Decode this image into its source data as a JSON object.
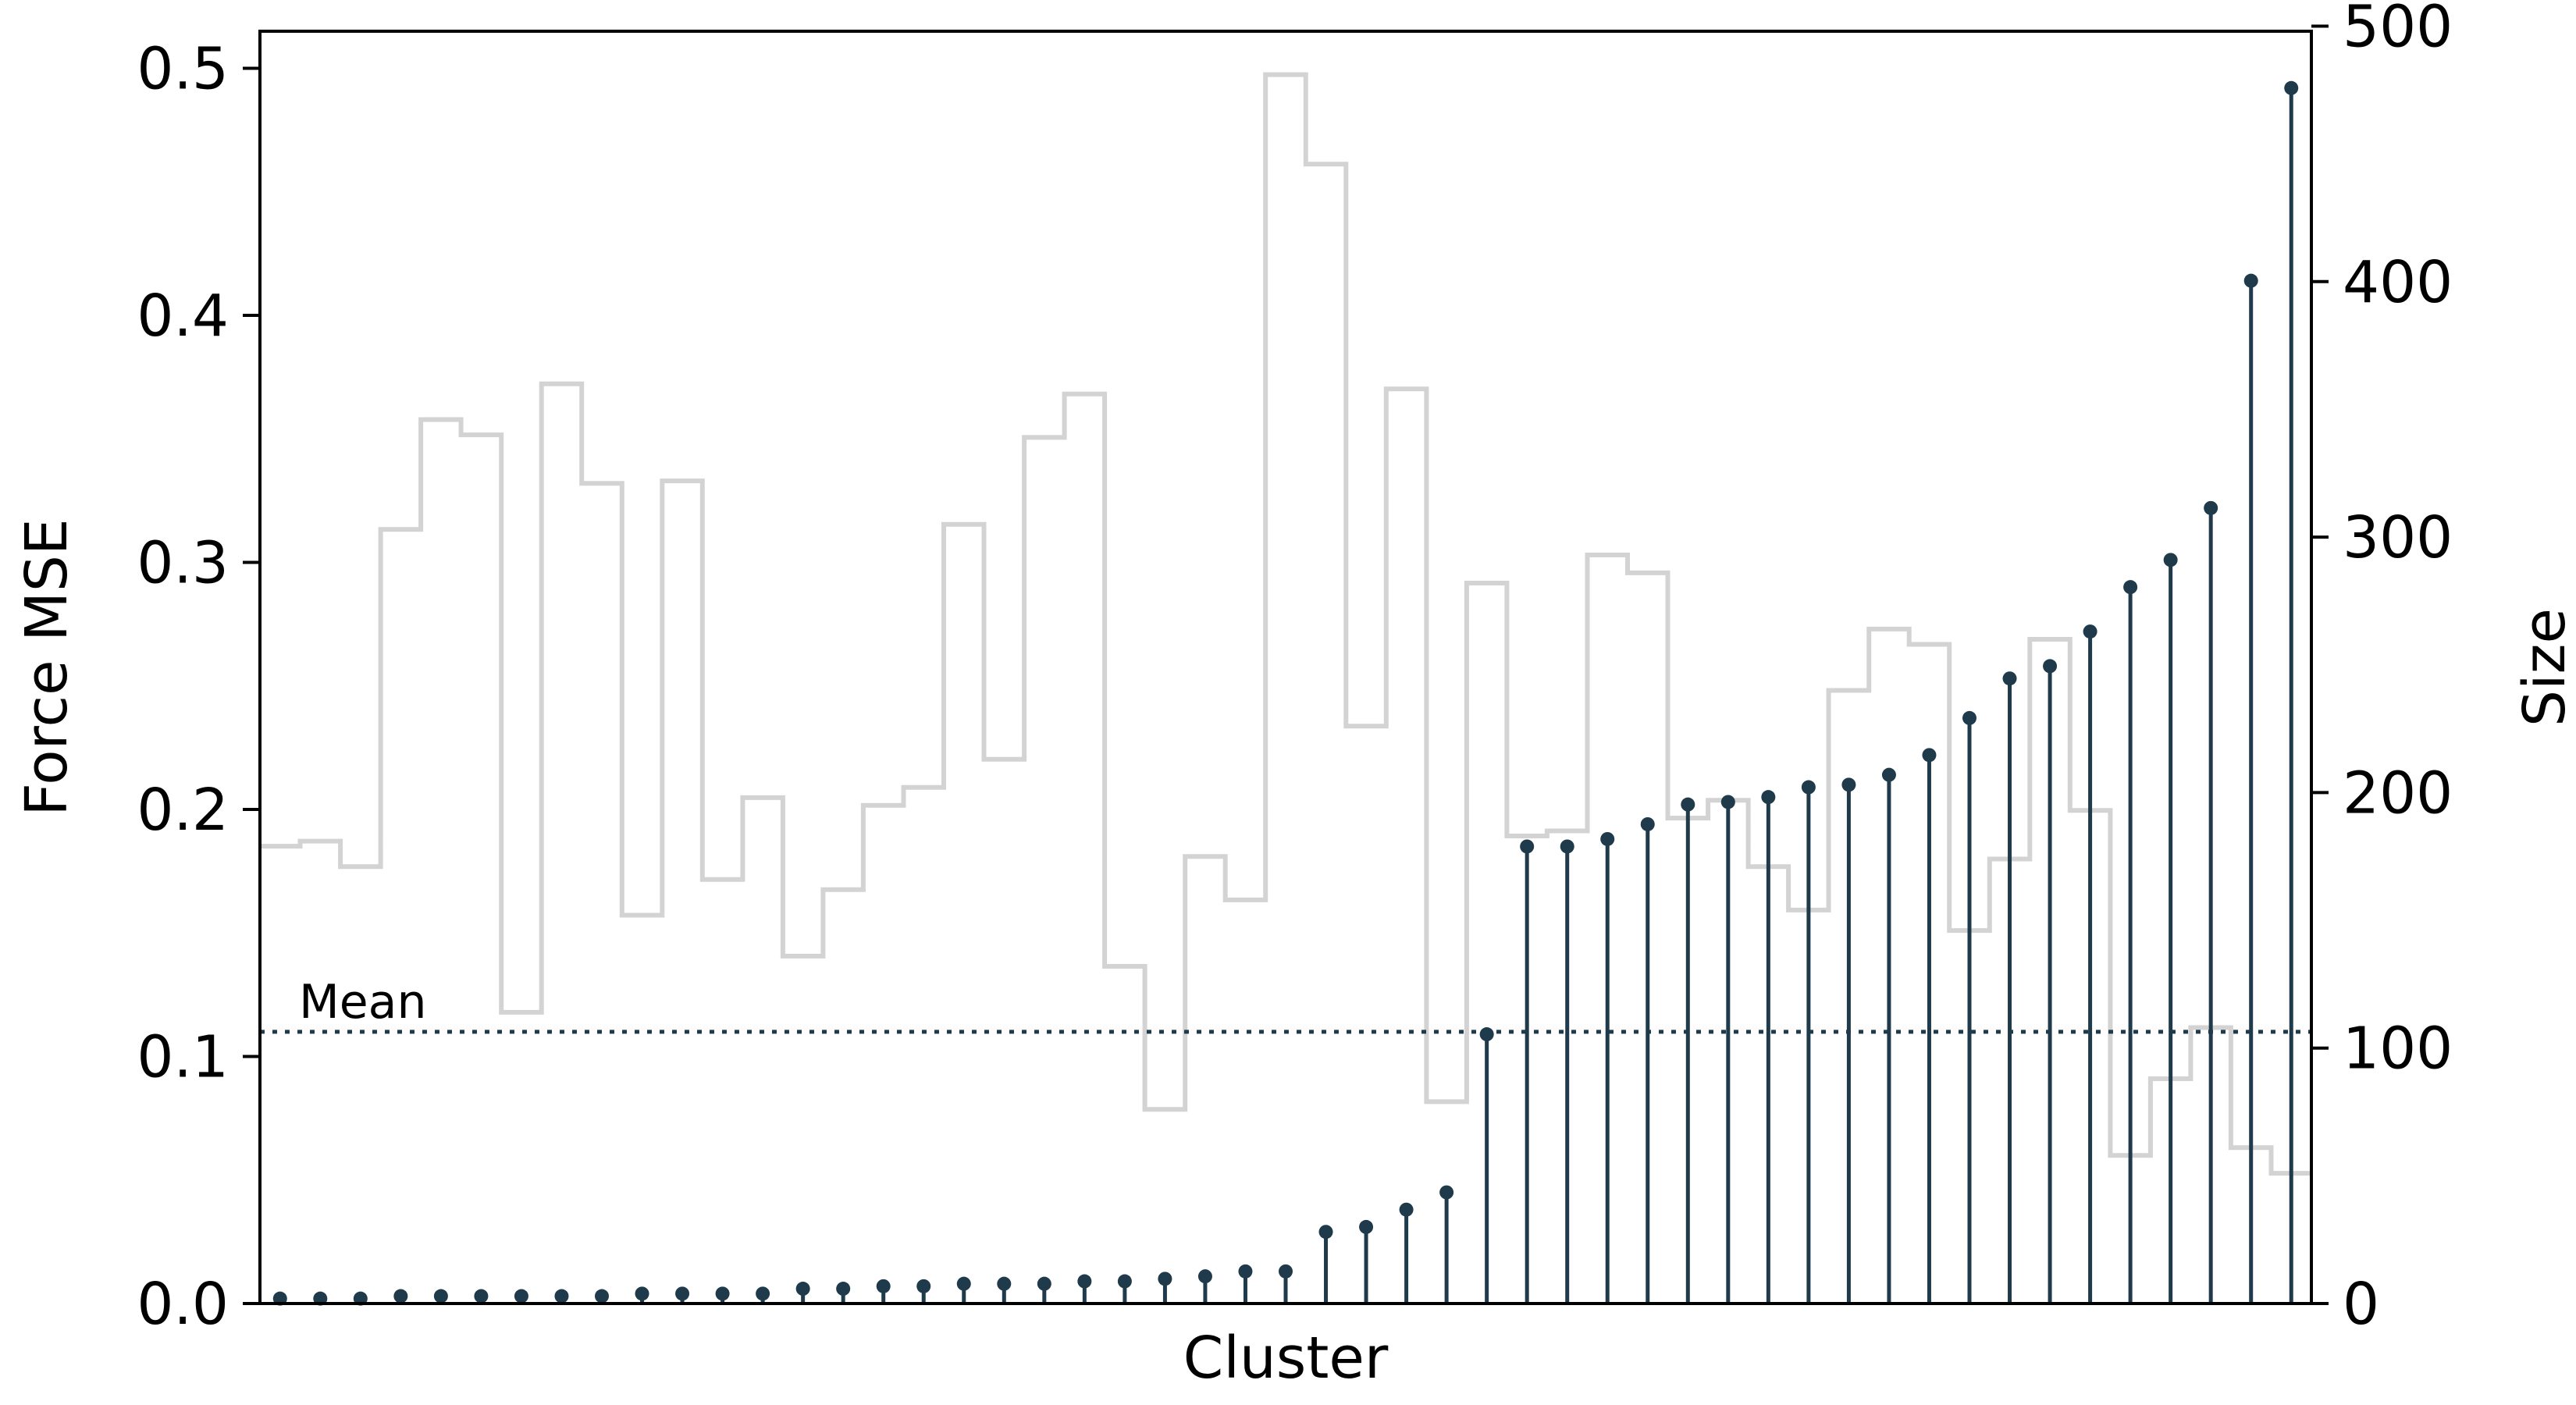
{
  "chart_data": {
    "type": "lollipop-with-step",
    "xlabel": "Cluster",
    "ylabel": "Force MSE",
    "y2label": "Size",
    "ylim": [
      0,
      0.515
    ],
    "y2lim": [
      0,
      498
    ],
    "yticks": [
      "0.0",
      "0.1",
      "0.2",
      "0.3",
      "0.4",
      "0.5"
    ],
    "y2ticks": [
      "0",
      "100",
      "200",
      "300",
      "400",
      "500"
    ],
    "mean": {
      "label": "Mean",
      "value": 0.11
    },
    "colors": {
      "stem": "#1f3a4a",
      "size_step": "#d3d3d3",
      "axis": "#000000"
    },
    "force_mse": [
      0.002,
      0.002,
      0.002,
      0.003,
      0.003,
      0.003,
      0.003,
      0.003,
      0.003,
      0.004,
      0.004,
      0.004,
      0.004,
      0.006,
      0.006,
      0.007,
      0.007,
      0.008,
      0.008,
      0.008,
      0.009,
      0.009,
      0.01,
      0.011,
      0.013,
      0.013,
      0.029,
      0.031,
      0.038,
      0.045,
      0.109,
      0.185,
      0.185,
      0.188,
      0.194,
      0.202,
      0.203,
      0.205,
      0.209,
      0.21,
      0.214,
      0.222,
      0.237,
      0.253,
      0.258,
      0.272,
      0.29,
      0.301,
      0.322,
      0.414,
      0.492
    ],
    "size": [
      179,
      181,
      171,
      303,
      346,
      340,
      114,
      360,
      321,
      152,
      322,
      166,
      198,
      136,
      162,
      195,
      202,
      305,
      213,
      339,
      356,
      132,
      76,
      175,
      158,
      481,
      446,
      226,
      358,
      79,
      282,
      183,
      185,
      293,
      286,
      190,
      197,
      171,
      154,
      240,
      264,
      258,
      146,
      174,
      260,
      193,
      58,
      88,
      108,
      61,
      51
    ]
  }
}
